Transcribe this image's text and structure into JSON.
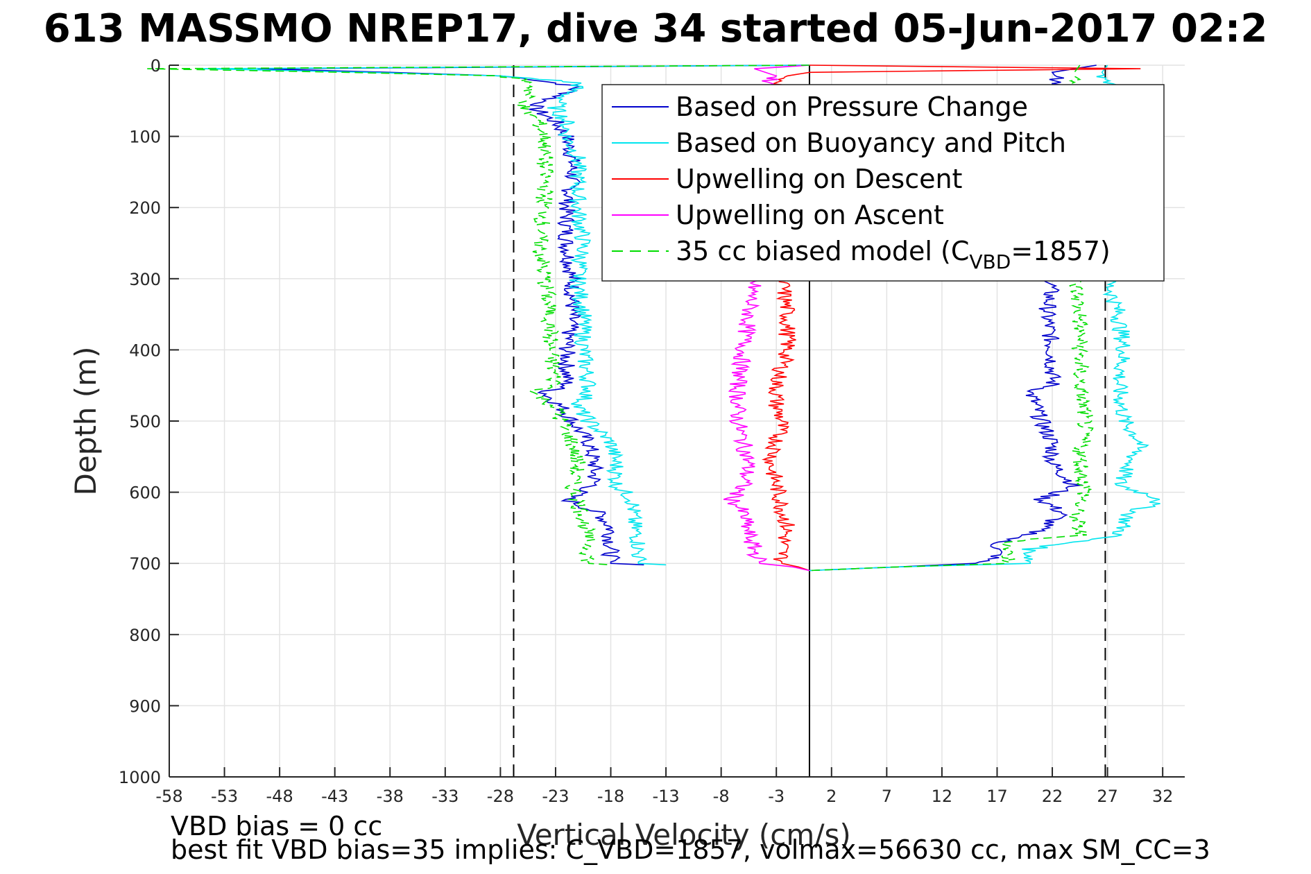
{
  "chart_data": {
    "type": "line",
    "title": "613 MASSMO NREP17, dive 34 started 05-Jun-2017 02:2",
    "xlabel": "Vertical Velocity (cm/s)",
    "ylabel": "Depth (m)",
    "xlim": [
      -58,
      34
    ],
    "ylim": [
      0,
      1000
    ],
    "y_reversed": true,
    "grid": true,
    "xticks": [
      -58,
      -53,
      -48,
      -43,
      -38,
      -33,
      -28,
      -23,
      -18,
      -13,
      -8,
      -3,
      2,
      7,
      12,
      17,
      22,
      27,
      32
    ],
    "yticks": [
      0,
      100,
      200,
      300,
      400,
      500,
      600,
      700,
      800,
      900,
      1000
    ],
    "reference_lines": [
      {
        "axis": "x",
        "value": -26.8,
        "style": "dashed",
        "color": "#000000"
      },
      {
        "axis": "x",
        "value": 0,
        "style": "solid",
        "color": "#000000"
      },
      {
        "axis": "x",
        "value": 26.8,
        "style": "dashed",
        "color": "#000000"
      }
    ],
    "legend_position": "top-right",
    "series": [
      {
        "name": "Based on Pressure Change",
        "color": "#0000cc",
        "style": "solid",
        "descent": {
          "depth": [
            0,
            5,
            10,
            15,
            20,
            25,
            30,
            40,
            50,
            60,
            80,
            100,
            130,
            160,
            200,
            250,
            300,
            350,
            400,
            450,
            460,
            480,
            500,
            530,
            560,
            590,
            610,
            630,
            650,
            680,
            700,
            702
          ],
          "velocity": [
            0,
            -50,
            -38,
            -28,
            -25,
            -23,
            -21,
            -22,
            -24,
            -25,
            -23,
            -22,
            -21.5,
            -21.5,
            -22,
            -22,
            -21.5,
            -21.5,
            -22,
            -22,
            -24,
            -22.5,
            -21.5,
            -20,
            -19.5,
            -19.5,
            -22,
            -19,
            -18,
            -18,
            -18,
            -15
          ]
        },
        "ascent": {
          "depth": [
            0,
            10,
            20,
            40,
            80,
            150,
            250,
            300,
            350,
            400,
            450,
            460,
            480,
            500,
            530,
            560,
            590,
            610,
            630,
            660,
            670,
            690,
            700,
            705,
            710
          ],
          "velocity": [
            26,
            22,
            22.5,
            23,
            22.5,
            22,
            22,
            22,
            21.5,
            22,
            22,
            20,
            20.5,
            21,
            22,
            22,
            24,
            21,
            23,
            20,
            17,
            17,
            15,
            8,
            0
          ]
        }
      },
      {
        "name": "Based on Buoyancy and Pitch",
        "color": "#00e5ee",
        "style": "solid",
        "descent": {
          "depth": [
            0,
            5,
            10,
            15,
            20,
            25,
            30,
            40,
            60,
            80,
            100,
            130,
            160,
            200,
            250,
            300,
            350,
            400,
            450,
            460,
            480,
            500,
            530,
            560,
            590,
            610,
            640,
            670,
            700,
            702
          ],
          "velocity": [
            0,
            -55,
            -40,
            -28,
            -24,
            -21,
            -21,
            -22,
            -23,
            -22,
            -22,
            -21,
            -21,
            -21,
            -20.5,
            -21,
            -20.5,
            -20.5,
            -20,
            -20,
            -21,
            -20,
            -18,
            -17.5,
            -17.5,
            -16,
            -16,
            -15.5,
            -15.5,
            -13
          ]
        },
        "ascent": {
          "depth": [
            0,
            10,
            20,
            40,
            80,
            150,
            250,
            300,
            350,
            400,
            450,
            500,
            530,
            560,
            590,
            610,
            630,
            660,
            680,
            700,
            705,
            710
          ],
          "velocity": [
            27,
            26.5,
            27,
            27.5,
            27.5,
            27,
            27,
            27,
            28,
            28.5,
            28,
            28.5,
            30,
            29,
            28,
            32,
            29,
            28,
            20,
            20,
            8,
            0
          ]
        }
      },
      {
        "name": "Upwelling on Descent",
        "color": "#ff0000",
        "style": "solid",
        "descent": {
          "depth": [
            0,
            5,
            10,
            15,
            20,
            30,
            100,
            200,
            300,
            350,
            400,
            450,
            480,
            500,
            530,
            560,
            590,
            620,
            650,
            680,
            700,
            705,
            710
          ],
          "velocity": [
            0,
            30,
            0,
            -2,
            -2.5,
            -2.5,
            -2.5,
            -2.5,
            -2.5,
            -2,
            -2,
            -3,
            -3,
            -2.5,
            -3,
            -3.5,
            -3,
            -2.5,
            -2,
            -2.5,
            -2.5,
            -1,
            0
          ]
        }
      },
      {
        "name": "Upwelling on Ascent",
        "color": "#ff00ff",
        "style": "solid",
        "ascent": {
          "depth": [
            0,
            5,
            10,
            15,
            20,
            30,
            100,
            200,
            300,
            350,
            400,
            450,
            500,
            530,
            560,
            590,
            610,
            630,
            660,
            680,
            700,
            705,
            710
          ],
          "velocity": [
            0,
            -5,
            -4,
            -3,
            -3.5,
            -4,
            -4.5,
            -4.5,
            -5,
            -5.5,
            -6,
            -6.5,
            -6.5,
            -6,
            -5.5,
            -6,
            -7,
            -6,
            -5.5,
            -5,
            -4.5,
            -1.5,
            0
          ]
        }
      },
      {
        "name": "35 cc biased model (C_VBD=1857)",
        "color": "#00dd00",
        "style": "dashed",
        "descent": {
          "depth": [
            0,
            5,
            10,
            15,
            20,
            30,
            40,
            60,
            80,
            100,
            130,
            160,
            200,
            250,
            300,
            350,
            400,
            450,
            460,
            480,
            500,
            530,
            560,
            590,
            610,
            640,
            670,
            700,
            702
          ],
          "velocity": [
            0,
            -60,
            -42,
            -28,
            -26,
            -25,
            -25.5,
            -26,
            -24.5,
            -24,
            -24,
            -24,
            -24,
            -24.5,
            -24,
            -23.5,
            -23.5,
            -23,
            -25,
            -23,
            -22.5,
            -21.5,
            -21,
            -21.5,
            -21,
            -20.5,
            -20,
            -20,
            -18
          ]
        },
        "ascent": {
          "depth": [
            0,
            10,
            20,
            40,
            80,
            150,
            250,
            300,
            350,
            400,
            450,
            500,
            550,
            600,
            630,
            660,
            670,
            700,
            705,
            710
          ],
          "velocity": [
            24.5,
            24,
            24,
            24,
            24,
            24,
            24,
            24,
            24.5,
            24.5,
            24.5,
            25,
            24.5,
            25,
            24,
            24.5,
            18,
            18,
            8,
            0
          ]
        }
      }
    ],
    "legend": [
      {
        "label": "Based on Pressure Change",
        "color": "#0000cc",
        "style": "solid"
      },
      {
        "label": "Based on Buoyancy and Pitch",
        "color": "#00e5ee",
        "style": "solid"
      },
      {
        "label": "Upwelling on Descent",
        "color": "#ff0000",
        "style": "solid"
      },
      {
        "label": "Upwelling on Ascent",
        "color": "#ff00ff",
        "style": "solid"
      },
      {
        "label_prefix": "35 cc biased model (C",
        "label_sub": "VBD",
        "label_suffix": "=1857)",
        "color": "#00dd00",
        "style": "dashed"
      }
    ],
    "annotations": [
      "VBD bias = 0 cc",
      "best fit VBD bias=35 implies: C_VBD=1857, volmax=56630 cc, max SM_CC=3"
    ]
  }
}
